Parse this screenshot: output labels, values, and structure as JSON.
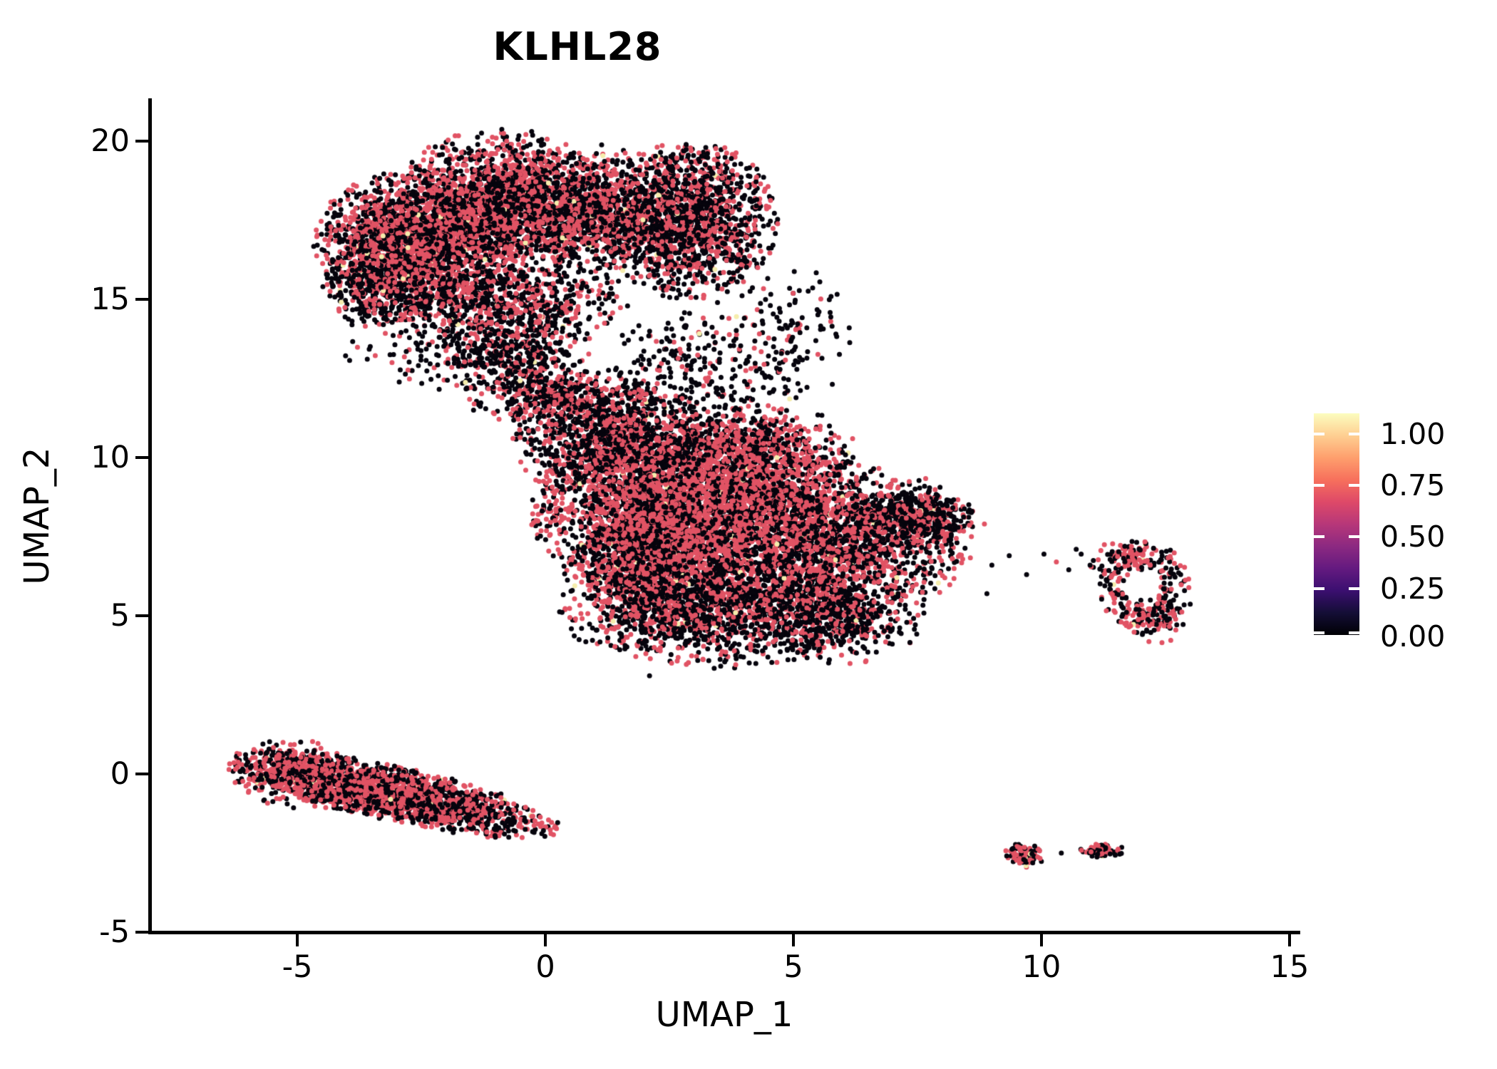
{
  "title": "KLHL28",
  "axes": {
    "x": {
      "label": "UMAP_1",
      "ticks": [
        "-5",
        "0",
        "5",
        "10",
        "15"
      ]
    },
    "y": {
      "label": "UMAP_2",
      "ticks": [
        "20",
        "15",
        "10",
        "5",
        "0",
        "-5"
      ]
    }
  },
  "legend": {
    "labels": [
      "1.00",
      "0.75",
      "0.50",
      "0.25",
      "0.00"
    ],
    "colormap": [
      "#000004",
      "#140e36",
      "#3b0f70",
      "#641a80",
      "#8c2981",
      "#b73779",
      "#de4968",
      "#f7705c",
      "#fe9f6d",
      "#fecf92",
      "#fcfdbf"
    ]
  },
  "chart_data": {
    "type": "scatter",
    "title": "KLHL28",
    "xlabel": "UMAP_1",
    "ylabel": "UMAP_2",
    "xlim": [
      -8,
      16.2
    ],
    "ylim": [
      -5.5,
      21.5
    ],
    "x_ticks": [
      -5,
      0,
      5,
      10,
      15
    ],
    "y_ticks": [
      20,
      15,
      10,
      5,
      0,
      -5
    ],
    "grid": false,
    "legend_position": "right",
    "colorbar_tick_values": [
      1.0,
      0.75,
      0.5,
      0.25,
      0.0
    ],
    "colorbar_domain": [
      0,
      1.1
    ],
    "colormap_name": "magma",
    "point_palette": {
      "low": "#06040d",
      "mid": "#e15364",
      "high": "#f5edad"
    },
    "point_radius_px": 3.5,
    "clusters": [
      {
        "id": "top-left-core",
        "shape": "gauss",
        "cx": -2.6,
        "cy": 16.9,
        "sx": 0.95,
        "sy": 1.0,
        "n": 2100,
        "p_mid": 0.52
      },
      {
        "id": "top-mid",
        "shape": "gauss",
        "cx": -0.9,
        "cy": 18.0,
        "sx": 1.0,
        "sy": 1.1,
        "n": 1900,
        "p_mid": 0.5
      },
      {
        "id": "top-right-lobe",
        "shape": "gauss",
        "cx": 2.9,
        "cy": 17.5,
        "sx": 0.85,
        "sy": 1.2,
        "clip": 2.1,
        "n": 1500,
        "p_mid": 0.36
      },
      {
        "id": "top-connector",
        "shape": "gauss",
        "cx": 1.0,
        "cy": 17.8,
        "sx": 0.9,
        "sy": 0.95,
        "n": 1100,
        "p_mid": 0.45
      },
      {
        "id": "top-bottom-bulge",
        "shape": "gauss",
        "cx": -1.0,
        "cy": 15.0,
        "sx": 1.3,
        "sy": 0.6,
        "n": 750,
        "p_mid": 0.4
      },
      {
        "id": "top-left-tail",
        "shape": "gauss",
        "cx": -3.4,
        "cy": 15.4,
        "sx": 0.55,
        "sy": 0.7,
        "clip": 2.0,
        "n": 380,
        "p_mid": 0.3,
        "p_hi": 0.02
      },
      {
        "id": "neck",
        "shape": "gauss",
        "cx": -0.55,
        "cy": 13.4,
        "sx": 0.7,
        "sy": 0.75,
        "n": 480,
        "p_mid": 0.28
      },
      {
        "id": "wedge",
        "shape": "gauss",
        "cx": 0.35,
        "cy": 11.95,
        "sx": 0.95,
        "sy": 0.45,
        "n": 450,
        "p_mid": 0.38
      },
      {
        "id": "sparse-neck-right",
        "shape": "gauss",
        "cx": 3.0,
        "cy": 12.7,
        "sx": 0.8,
        "sy": 1.1,
        "n": 240,
        "p_mid": 0.2
      },
      {
        "id": "sparse-lobe-right",
        "shape": "gauss",
        "cx": 4.8,
        "cy": 13.9,
        "sx": 0.65,
        "sy": 1.1,
        "n": 150,
        "p_mid": 0.15
      },
      {
        "id": "sparse-neck-left",
        "shape": "gauss",
        "cx": -2.0,
        "cy": 13.3,
        "sx": 1.0,
        "sy": 0.6,
        "n": 140,
        "p_mid": 0.22
      },
      {
        "id": "mid-core",
        "shape": "gauss",
        "cx": 3.1,
        "cy": 8.2,
        "sx": 1.55,
        "sy": 1.35,
        "n": 3800,
        "p_mid": 0.58
      },
      {
        "id": "mid-topleft",
        "shape": "gauss",
        "cx": 1.4,
        "cy": 10.5,
        "sx": 0.95,
        "sy": 0.85,
        "n": 1100,
        "p_mid": 0.33
      },
      {
        "id": "mid-topright",
        "shape": "gauss",
        "cx": 4.0,
        "cy": 10.2,
        "sx": 1.05,
        "sy": 0.75,
        "n": 800,
        "p_mid": 0.52
      },
      {
        "id": "mid-right",
        "shape": "gauss",
        "cx": 5.9,
        "cy": 7.4,
        "sx": 1.25,
        "sy": 1.15,
        "n": 1700,
        "p_mid": 0.45
      },
      {
        "id": "mid-bottomleft",
        "shape": "gauss",
        "cx": 2.0,
        "cy": 6.6,
        "sx": 0.75,
        "sy": 1.0,
        "n": 900,
        "p_mid": 0.42
      },
      {
        "id": "mid-bottom",
        "shape": "gauss",
        "cx": 3.5,
        "cy": 5.2,
        "sx": 1.5,
        "sy": 0.85,
        "n": 1400,
        "p_mid": 0.34
      },
      {
        "id": "mid-bottomright",
        "shape": "gauss",
        "cx": 5.9,
        "cy": 5.0,
        "sx": 0.8,
        "sy": 0.7,
        "n": 500,
        "p_mid": 0.35
      },
      {
        "id": "mid-tip",
        "shape": "gauss",
        "cx": 7.4,
        "cy": 8.1,
        "sx": 0.65,
        "sy": 0.5,
        "rot": -8,
        "clip": 2.0,
        "n": 380,
        "p_mid": 0.32
      },
      {
        "id": "right-ring",
        "shape": "ring",
        "cx": 12.05,
        "cy": 5.95,
        "rx": 0.95,
        "ry": 1.35,
        "inner": 0.45,
        "n": 240,
        "p_mid": 0.45,
        "p_hi": 0.012
      },
      {
        "id": "ring-clump-top",
        "shape": "gauss",
        "cx": 11.7,
        "cy": 6.8,
        "sx": 0.38,
        "sy": 0.3,
        "n": 60,
        "p_mid": 0.5,
        "p_hi": 0.02
      },
      {
        "id": "ring-clump-bottom",
        "shape": "gauss",
        "cx": 12.25,
        "cy": 4.85,
        "sx": 0.3,
        "sy": 0.35,
        "n": 70,
        "p_mid": 0.5,
        "p_hi": 0.02
      },
      {
        "id": "bottom-band",
        "shape": "gauss",
        "cx": -3.0,
        "cy": -0.65,
        "sx": 1.7,
        "sy": 0.42,
        "rot": -19,
        "clip": 2.05,
        "n": 1900,
        "p_mid": 0.5,
        "p_hi": 0.012
      },
      {
        "id": "bottom-band-left",
        "shape": "gauss",
        "cx": -5.0,
        "cy": 0.0,
        "sx": 0.65,
        "sy": 0.5,
        "rot": -15,
        "n": 450,
        "p_mid": 0.55,
        "p_hi": 0.012
      },
      {
        "id": "tiny-bottom-left",
        "shape": "gauss",
        "cx": 9.7,
        "cy": -2.55,
        "sx": 0.2,
        "sy": 0.18,
        "n": 85,
        "p_mid": 0.5,
        "p_hi": 0.03
      },
      {
        "id": "tiny-bottom-right",
        "shape": "gauss",
        "cx": 11.25,
        "cy": -2.43,
        "sx": 0.23,
        "sy": 0.12,
        "n": 70,
        "p_mid": 0.45
      }
    ],
    "outliers": [
      [
        2.1,
        3.1,
        0
      ],
      [
        6.5,
        3.85,
        0
      ],
      [
        3.7,
        14.4,
        0.7
      ],
      [
        9.0,
        6.6,
        0
      ],
      [
        9.35,
        6.9,
        0
      ],
      [
        9.7,
        6.3,
        0
      ],
      [
        10.05,
        6.95,
        0
      ],
      [
        10.3,
        6.7,
        0.7
      ],
      [
        10.55,
        6.45,
        0
      ],
      [
        10.8,
        6.95,
        0
      ],
      [
        11.0,
        6.55,
        0.7
      ],
      [
        10.7,
        7.1,
        0
      ],
      [
        10.4,
        -2.5,
        0
      ],
      [
        8.9,
        5.7,
        0
      ],
      [
        8.6,
        8.3,
        0
      ],
      [
        8.85,
        7.9,
        0.7
      ]
    ]
  }
}
